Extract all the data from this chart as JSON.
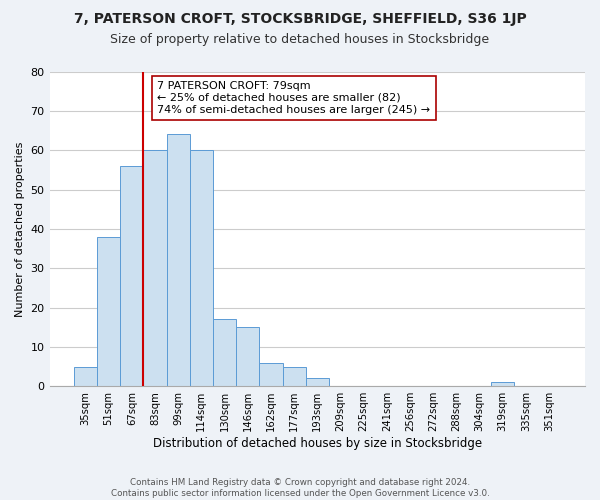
{
  "title": "7, PATERSON CROFT, STOCKSBRIDGE, SHEFFIELD, S36 1JP",
  "subtitle": "Size of property relative to detached houses in Stocksbridge",
  "xlabel": "Distribution of detached houses by size in Stocksbridge",
  "ylabel": "Number of detached properties",
  "bar_values": [
    5,
    38,
    56,
    60,
    64,
    60,
    17,
    15,
    6,
    5,
    2,
    0,
    0,
    0,
    0,
    0,
    0,
    0,
    1,
    0,
    0
  ],
  "bin_labels": [
    "35sqm",
    "51sqm",
    "67sqm",
    "83sqm",
    "99sqm",
    "114sqm",
    "130sqm",
    "146sqm",
    "162sqm",
    "177sqm",
    "193sqm",
    "209sqm",
    "225sqm",
    "241sqm",
    "256sqm",
    "272sqm",
    "288sqm",
    "304sqm",
    "319sqm",
    "335sqm",
    "351sqm"
  ],
  "bar_color": "#cce0f0",
  "bar_edge_color": "#5b9bd5",
  "vline_color": "#cc0000",
  "annotation_text": "7 PATERSON CROFT: 79sqm\n← 25% of detached houses are smaller (82)\n74% of semi-detached houses are larger (245) →",
  "annotation_box_color": "#ffffff",
  "annotation_box_edge": "#aa0000",
  "ylim": [
    0,
    80
  ],
  "yticks": [
    0,
    10,
    20,
    30,
    40,
    50,
    60,
    70,
    80
  ],
  "footer_line1": "Contains HM Land Registry data © Crown copyright and database right 2024.",
  "footer_line2": "Contains public sector information licensed under the Open Government Licence v3.0.",
  "bg_color": "#eef2f7",
  "plot_bg_color": "#ffffff",
  "grid_color": "#cccccc"
}
